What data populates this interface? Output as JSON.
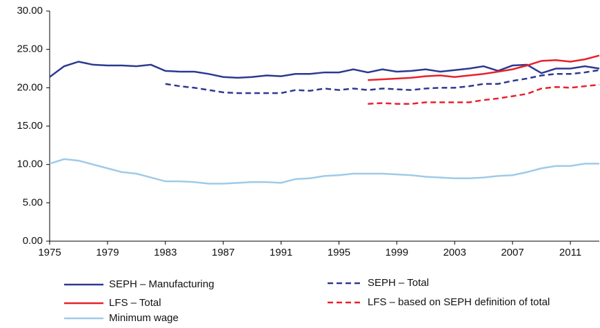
{
  "chart_data": {
    "type": "line",
    "x": [
      1975,
      1976,
      1977,
      1978,
      1979,
      1980,
      1981,
      1982,
      1983,
      1984,
      1985,
      1986,
      1987,
      1988,
      1989,
      1990,
      1991,
      1992,
      1993,
      1994,
      1995,
      1996,
      1997,
      1998,
      1999,
      2000,
      2001,
      2002,
      2003,
      2004,
      2005,
      2006,
      2007,
      2008,
      2009,
      2010,
      2011,
      2012,
      2013
    ],
    "xlim": [
      1975,
      2013
    ],
    "xticks": [
      1975,
      1979,
      1983,
      1987,
      1991,
      1995,
      1999,
      2003,
      2007,
      2011
    ],
    "ylim": [
      0,
      30
    ],
    "yticks": [
      {
        "value": 0,
        "label": "0.00"
      },
      {
        "value": 5,
        "label": "5.00"
      },
      {
        "value": 10,
        "label": "10.00"
      },
      {
        "value": 15,
        "label": "15.00"
      },
      {
        "value": 20,
        "label": "20.00"
      },
      {
        "value": 25,
        "label": "25.00"
      },
      {
        "value": 30,
        "label": "30.00"
      }
    ],
    "grid": false,
    "series": [
      {
        "name": "SEPH – Manufacturing",
        "color": "#2b3990",
        "style": "solid",
        "values": [
          21.4,
          22.8,
          23.4,
          23.0,
          22.9,
          22.9,
          22.8,
          23.0,
          22.2,
          22.1,
          22.1,
          21.8,
          21.4,
          21.3,
          21.4,
          21.6,
          21.5,
          21.8,
          21.8,
          22.0,
          22.0,
          22.4,
          22.0,
          22.4,
          22.1,
          22.2,
          22.4,
          22.1,
          22.3,
          22.5,
          22.8,
          22.2,
          22.9,
          23.0,
          21.9,
          22.5,
          22.5,
          22.8,
          22.5
        ]
      },
      {
        "name": "SEPH – Total",
        "color": "#2b3990",
        "style": "dashed",
        "values": [
          null,
          null,
          null,
          null,
          null,
          null,
          null,
          null,
          20.5,
          20.2,
          20.0,
          19.7,
          19.4,
          19.3,
          19.3,
          19.3,
          19.3,
          19.7,
          19.6,
          19.9,
          19.7,
          19.9,
          19.7,
          19.9,
          19.8,
          19.7,
          19.9,
          20.0,
          20.0,
          20.2,
          20.5,
          20.5,
          20.9,
          21.2,
          21.6,
          21.8,
          21.8,
          22.0,
          22.3
        ]
      },
      {
        "name": "LFS – Total",
        "color": "#e8202a",
        "style": "solid",
        "values": [
          null,
          null,
          null,
          null,
          null,
          null,
          null,
          null,
          null,
          null,
          null,
          null,
          null,
          null,
          null,
          null,
          null,
          null,
          null,
          null,
          null,
          null,
          21.0,
          21.1,
          21.2,
          21.3,
          21.5,
          21.6,
          21.4,
          21.6,
          21.8,
          22.1,
          22.4,
          22.9,
          23.5,
          23.6,
          23.4,
          23.7,
          24.2
        ]
      },
      {
        "name": "LFS – based on SEPH definition of total",
        "color": "#e8202a",
        "style": "dashed",
        "values": [
          null,
          null,
          null,
          null,
          null,
          null,
          null,
          null,
          null,
          null,
          null,
          null,
          null,
          null,
          null,
          null,
          null,
          null,
          null,
          null,
          null,
          null,
          17.9,
          18.0,
          17.9,
          17.9,
          18.1,
          18.1,
          18.1,
          18.1,
          18.4,
          18.6,
          18.9,
          19.2,
          19.9,
          20.1,
          20.0,
          20.2,
          20.4
        ]
      },
      {
        "name": "Minimum wage",
        "color": "#9ecae9",
        "style": "solid",
        "values": [
          10.1,
          10.7,
          10.5,
          10.0,
          9.5,
          9.0,
          8.8,
          8.3,
          7.8,
          7.8,
          7.7,
          7.5,
          7.5,
          7.6,
          7.7,
          7.7,
          7.6,
          8.1,
          8.2,
          8.5,
          8.6,
          8.8,
          8.8,
          8.8,
          8.7,
          8.6,
          8.4,
          8.3,
          8.2,
          8.2,
          8.3,
          8.5,
          8.6,
          9.0,
          9.5,
          9.8,
          9.8,
          10.1,
          10.1
        ]
      }
    ]
  }
}
